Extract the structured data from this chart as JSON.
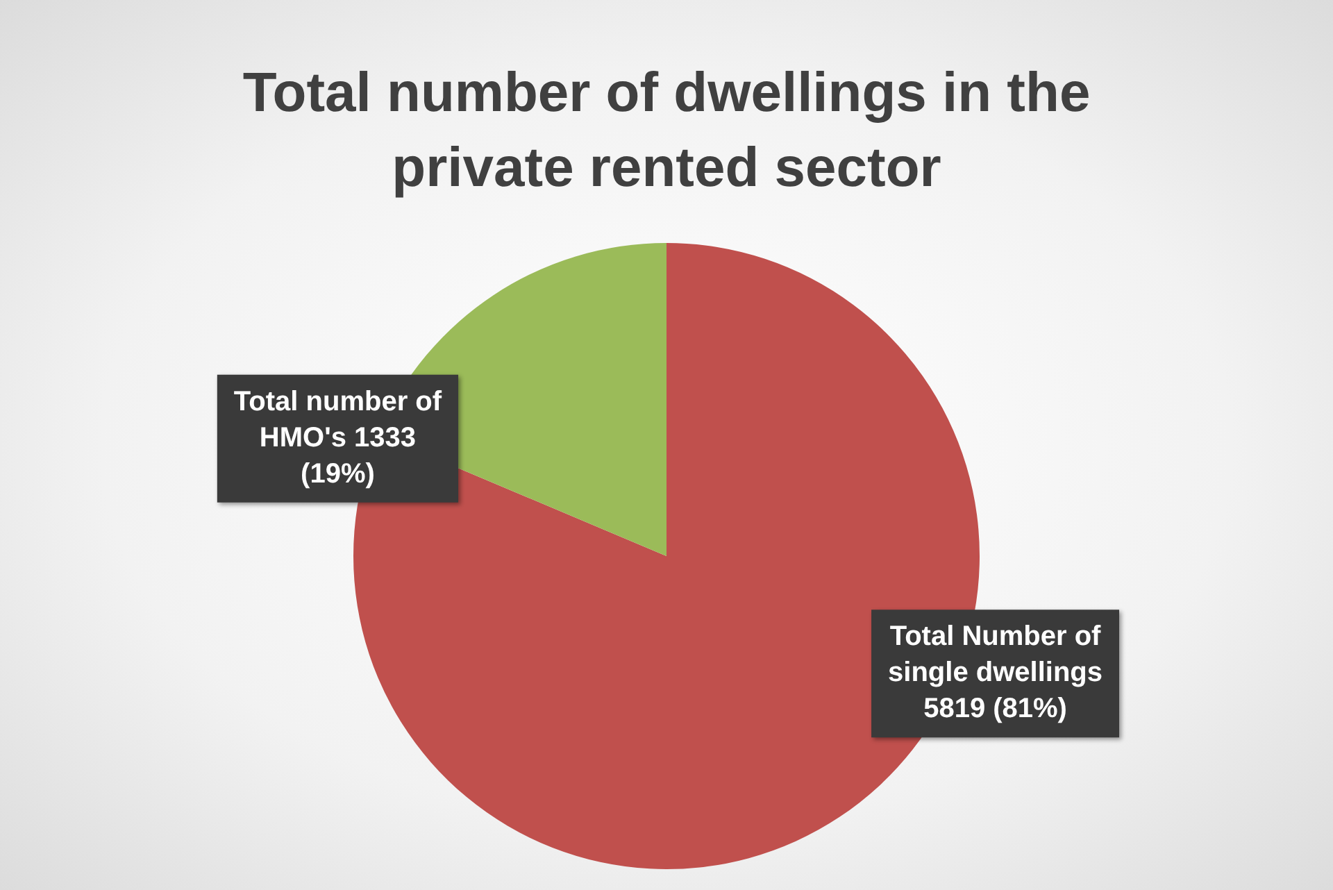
{
  "chart_data": {
    "type": "pie",
    "title": "Total number of dwellings in the private rented sector",
    "categories": [
      "Total Number of single dwellings",
      "Total number of HMO's"
    ],
    "values": [
      5819,
      1333
    ],
    "value_labels": [
      "5819 (81%)",
      "1333 (19%)"
    ],
    "colors": [
      "#c0504d",
      "#9bbb59"
    ],
    "legend": false
  }
}
